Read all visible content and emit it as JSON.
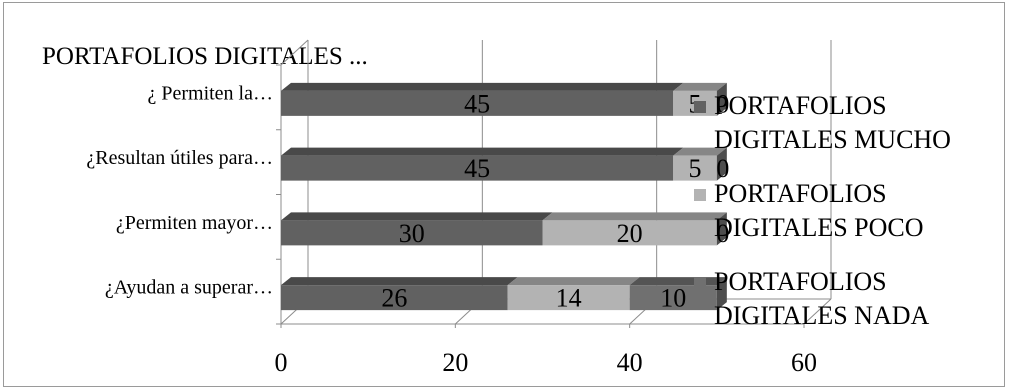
{
  "chart_data": {
    "type": "bar",
    "orientation": "horizontal",
    "stacked": true,
    "three_d": true,
    "title": "PORTAFOLIOS DIGITALES ...",
    "categories": [
      "¿ Permiten la…",
      "¿Resultan útiles para…",
      "¿Permiten mayor…",
      "¿Ayudan a superar…"
    ],
    "series": [
      {
        "name": "PORTAFOLIOS DIGITALES MUCHO",
        "values": [
          45,
          45,
          30,
          26
        ],
        "color": "#616161"
      },
      {
        "name": "PORTAFOLIOS DIGITALES POCO",
        "values": [
          5,
          5,
          20,
          14
        ],
        "color": "#b3b3b3"
      },
      {
        "name": "PORTAFOLIOS DIGITALES NADA",
        "values": [
          0,
          0,
          0,
          10
        ],
        "color": "#707070"
      }
    ],
    "xlim": [
      0,
      60
    ],
    "xticks": [
      0,
      20,
      40,
      60
    ],
    "grid": true,
    "legend_position": "right"
  }
}
